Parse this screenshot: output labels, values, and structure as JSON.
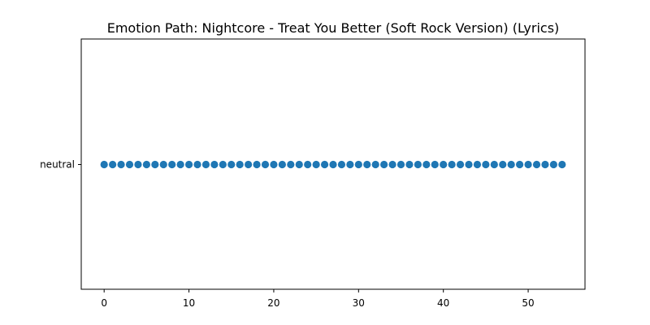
{
  "chart_data": {
    "type": "scatter",
    "title": "Emotion Path: Nightcore - Treat You Better (Soft Rock Version) (Lyrics)",
    "xlabel": "",
    "ylabel": "",
    "x": [
      0,
      1,
      2,
      3,
      4,
      5,
      6,
      7,
      8,
      9,
      10,
      11,
      12,
      13,
      14,
      15,
      16,
      17,
      18,
      19,
      20,
      21,
      22,
      23,
      24,
      25,
      26,
      27,
      28,
      29,
      30,
      31,
      32,
      33,
      34,
      35,
      36,
      37,
      38,
      39,
      40,
      41,
      42,
      43,
      44,
      45,
      46,
      47,
      48,
      49,
      50,
      51,
      52,
      53,
      54
    ],
    "y": [
      "neutral",
      "neutral",
      "neutral",
      "neutral",
      "neutral",
      "neutral",
      "neutral",
      "neutral",
      "neutral",
      "neutral",
      "neutral",
      "neutral",
      "neutral",
      "neutral",
      "neutral",
      "neutral",
      "neutral",
      "neutral",
      "neutral",
      "neutral",
      "neutral",
      "neutral",
      "neutral",
      "neutral",
      "neutral",
      "neutral",
      "neutral",
      "neutral",
      "neutral",
      "neutral",
      "neutral",
      "neutral",
      "neutral",
      "neutral",
      "neutral",
      "neutral",
      "neutral",
      "neutral",
      "neutral",
      "neutral",
      "neutral",
      "neutral",
      "neutral",
      "neutral",
      "neutral",
      "neutral",
      "neutral",
      "neutral",
      "neutral",
      "neutral",
      "neutral",
      "neutral",
      "neutral",
      "neutral",
      "neutral"
    ],
    "y_categories": [
      "neutral"
    ],
    "x_ticks": [
      0,
      10,
      20,
      30,
      40,
      50
    ],
    "xlim": [
      -2.7,
      56.7
    ],
    "grid": false,
    "legend": "none",
    "marker_color": "#1f77b4"
  }
}
